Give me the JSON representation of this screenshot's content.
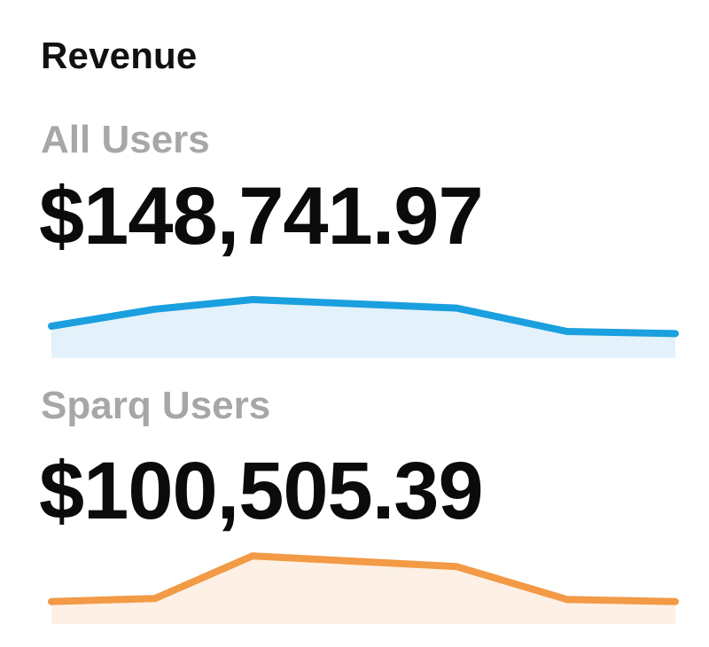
{
  "header": {
    "title": "Revenue"
  },
  "segments": [
    {
      "label": "All Users",
      "value": "$148,741.97",
      "color": "#1a9fdf",
      "fill": "#e3f1fa"
    },
    {
      "label": "Sparq Users",
      "value": "$100,505.39",
      "color": "#f29a45",
      "fill": "#fdf0e4"
    }
  ],
  "chart_data": [
    {
      "type": "area",
      "series": [
        {
          "values": [
            0.3,
            0.62,
            0.8,
            0.72,
            0.64,
            0.2,
            0.16
          ]
        }
      ],
      "ylim": [
        0,
        1
      ],
      "grid": false
    },
    {
      "type": "area",
      "series": [
        {
          "values": [
            0.12,
            0.18,
            0.98,
            0.88,
            0.78,
            0.16,
            0.12
          ]
        }
      ],
      "ylim": [
        0,
        1
      ],
      "grid": false
    }
  ]
}
